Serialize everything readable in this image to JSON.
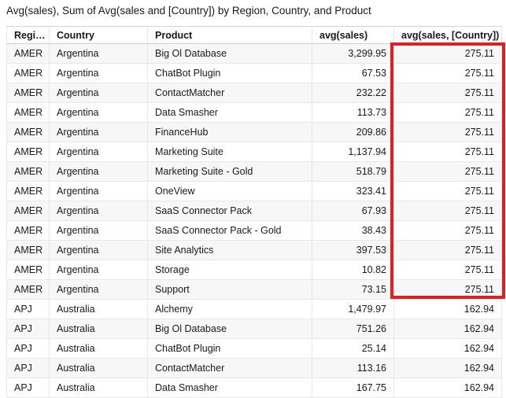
{
  "title": "Avg(sales), Sum of Avg(sales and [Country]) by Region, Country, and Product",
  "table": {
    "columns": [
      {
        "label": "Regi…",
        "align": "left"
      },
      {
        "label": "Country",
        "align": "left"
      },
      {
        "label": "Product",
        "align": "left"
      },
      {
        "label": "avg(sales)",
        "align": "right"
      },
      {
        "label": "avg(sales, [Country])",
        "align": "right"
      }
    ],
    "rows": [
      [
        "AMER",
        "Argentina",
        "Big Ol Database",
        "3,299.95",
        "275.11"
      ],
      [
        "AMER",
        "Argentina",
        "ChatBot Plugin",
        "67.53",
        "275.11"
      ],
      [
        "AMER",
        "Argentina",
        "ContactMatcher",
        "232.22",
        "275.11"
      ],
      [
        "AMER",
        "Argentina",
        "Data Smasher",
        "113.73",
        "275.11"
      ],
      [
        "AMER",
        "Argentina",
        "FinanceHub",
        "209.86",
        "275.11"
      ],
      [
        "AMER",
        "Argentina",
        "Marketing Suite",
        "1,137.94",
        "275.11"
      ],
      [
        "AMER",
        "Argentina",
        "Marketing Suite - Gold",
        "518.79",
        "275.11"
      ],
      [
        "AMER",
        "Argentina",
        "OneView",
        "323.41",
        "275.11"
      ],
      [
        "AMER",
        "Argentina",
        "SaaS Connector Pack",
        "67.93",
        "275.11"
      ],
      [
        "AMER",
        "Argentina",
        "SaaS Connector Pack - Gold",
        "38.43",
        "275.11"
      ],
      [
        "AMER",
        "Argentina",
        "Site Analytics",
        "397.53",
        "275.11"
      ],
      [
        "AMER",
        "Argentina",
        "Storage",
        "10.82",
        "275.11"
      ],
      [
        "AMER",
        "Argentina",
        "Support",
        "73.15",
        "275.11"
      ],
      [
        "APJ",
        "Australia",
        "Alchemy",
        "1,479.97",
        "162.94"
      ],
      [
        "APJ",
        "Australia",
        "Big Ol Database",
        "751.26",
        "162.94"
      ],
      [
        "APJ",
        "Australia",
        "ChatBot Plugin",
        "25.14",
        "162.94"
      ],
      [
        "APJ",
        "Australia",
        "ContactMatcher",
        "113.16",
        "162.94"
      ],
      [
        "APJ",
        "Australia",
        "Data Smasher",
        "167.75",
        "162.94"
      ]
    ],
    "highlight": {
      "column_label": "avg(sales, [Country])",
      "row_start": 1,
      "row_end": 13,
      "color": "#e02020"
    }
  },
  "colors": {
    "highlight_red": "#e02020",
    "row_stripe": "#f7f7f7",
    "grid_border": "#e7e7e7",
    "outer_border": "#d4d4d4",
    "text": "#16191f"
  }
}
